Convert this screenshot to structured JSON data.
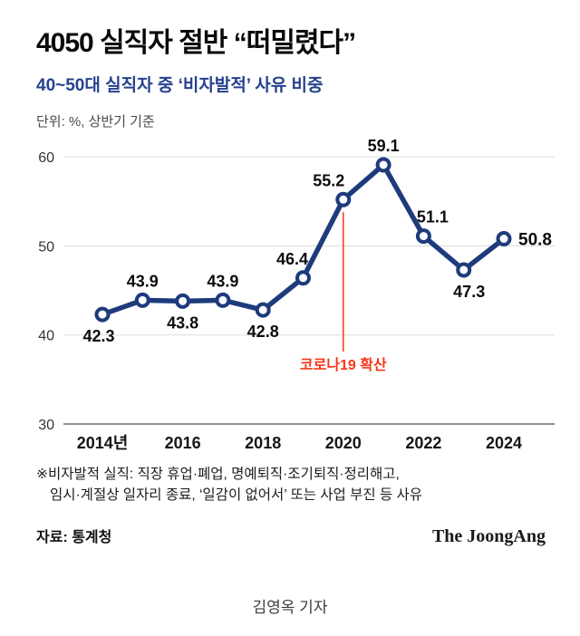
{
  "header": {
    "title": "4050 실직자 절반 “떠밀렸다”",
    "subtitle": "40~50대 실직자 중 ‘비자발적’ 사유 비중",
    "unit_note": "단위: %, 상반기 기준"
  },
  "chart_data": {
    "type": "line",
    "title": "40~50대 실직자 중 ‘비자발적’ 사유 비중",
    "x": [
      2014,
      2015,
      2016,
      2017,
      2018,
      2019,
      2020,
      2021,
      2022,
      2023,
      2024
    ],
    "values": [
      42.3,
      43.9,
      43.8,
      43.9,
      42.8,
      46.4,
      55.2,
      59.1,
      51.1,
      47.3,
      50.8
    ],
    "y_ticks": [
      30,
      40,
      50,
      60
    ],
    "ylim": [
      30,
      62
    ],
    "x_tick_years": [
      2014,
      2016,
      2018,
      2020,
      2022,
      2024
    ],
    "x_tick_labels": [
      "2014년",
      "2016",
      "2018",
      "2020",
      "2022",
      "2024"
    ],
    "grid": true,
    "legend": "none",
    "line_color": "#1e3b7c",
    "annotation": {
      "text": "코로나19 확산",
      "year": 2020,
      "color": "#f5381a"
    },
    "label_pos": [
      "below",
      "above",
      "below",
      "above",
      "below",
      "above",
      "above",
      "above",
      "above",
      "below",
      "right"
    ],
    "label_dx": [
      -4,
      0,
      0,
      0,
      0,
      -12,
      -16,
      0,
      10,
      6,
      0
    ]
  },
  "footnote": {
    "line1": "※비자발적 실직: 직장 휴업·폐업, 명예퇴직·조기퇴직·정리해고,",
    "line2": "임시·계절상 일자리 종료, ‘일감이 없어서’ 또는 사업 부진 등 사유"
  },
  "footer": {
    "source": "자료: 통계청",
    "brand": "The JoongAng"
  },
  "byline": "김영옥 기자"
}
